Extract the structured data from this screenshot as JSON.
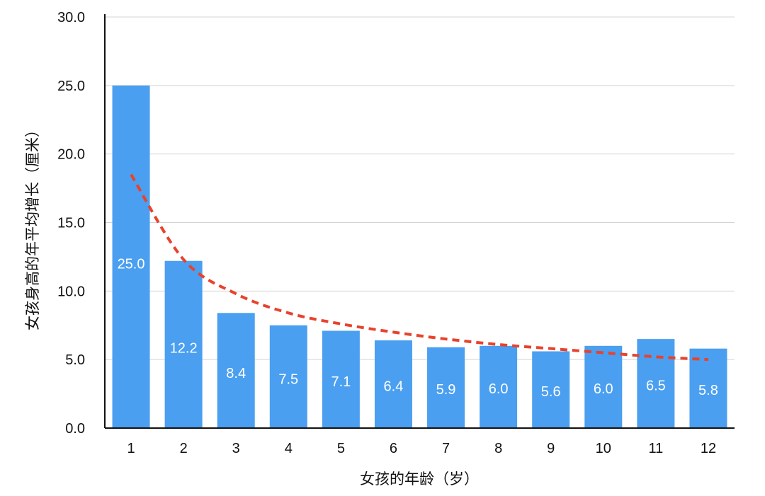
{
  "chart_data": {
    "type": "bar",
    "title": "",
    "xlabel": "女孩的年龄（岁）",
    "ylabel": "女孩身高的年平均增长（厘米）",
    "categories": [
      "1",
      "2",
      "3",
      "4",
      "5",
      "6",
      "7",
      "8",
      "9",
      "10",
      "11",
      "12"
    ],
    "values": [
      25.0,
      12.2,
      8.4,
      7.5,
      7.1,
      6.4,
      5.9,
      6.0,
      5.6,
      6.0,
      6.5,
      5.8
    ],
    "data_labels": [
      "25.0",
      "12.2",
      "8.4",
      "7.5",
      "7.1",
      "6.4",
      "5.9",
      "6.0",
      "5.6",
      "6.0",
      "6.5",
      "5.8"
    ],
    "ylim": [
      0,
      30
    ],
    "yticks": [
      "0.0",
      "5.0",
      "10.0",
      "15.0",
      "20.0",
      "25.0",
      "30.0"
    ],
    "grid": true,
    "trendline": {
      "type": "power",
      "values": [
        18.5,
        12.3,
        9.8,
        8.4,
        7.6,
        7.0,
        6.5,
        6.1,
        5.8,
        5.5,
        5.2,
        5.0
      ]
    },
    "colors": {
      "bar": "#4a9ff0",
      "trendline": "#e8422c",
      "grid": "#d4d4d4",
      "axis": "#111111"
    }
  }
}
